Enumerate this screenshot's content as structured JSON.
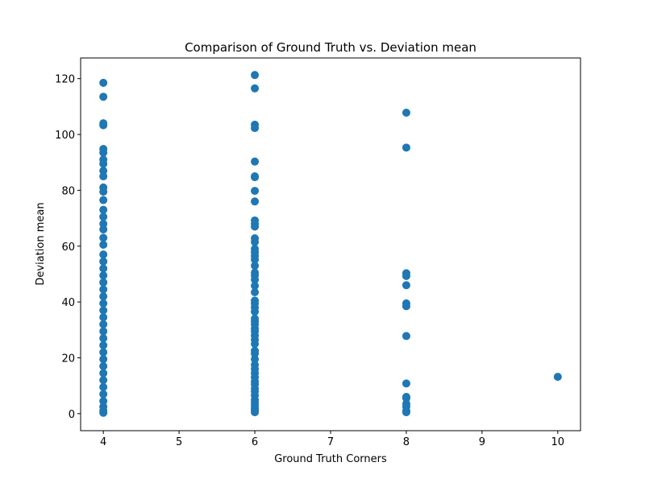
{
  "chart_data": {
    "type": "scatter",
    "title": "Comparison of Ground Truth vs. Deviation mean",
    "x_label": "Ground Truth Corners",
    "y_label": "Deviation mean",
    "color": "#1f77b4",
    "xlim": [
      3.7,
      10.3
    ],
    "ylim": [
      -6.1,
      127.4
    ],
    "xticks": [
      4,
      5,
      6,
      7,
      8,
      9,
      10
    ],
    "yticks": [
      0,
      20,
      40,
      60,
      80,
      100,
      120
    ],
    "x": [
      4,
      4,
      4,
      4,
      4,
      4,
      4,
      4,
      4,
      4,
      4,
      4,
      4,
      4,
      4,
      4,
      4,
      4,
      4,
      4,
      4,
      4,
      4,
      4,
      4,
      4,
      4,
      4,
      4,
      4,
      4,
      4,
      4,
      4,
      4,
      4,
      4,
      4,
      4,
      4,
      4,
      4,
      4,
      4,
      6,
      6,
      6,
      6,
      6,
      6,
      6,
      6,
      6,
      6,
      6,
      6,
      6,
      6,
      6,
      6,
      6,
      6,
      6,
      6,
      6,
      6,
      6,
      6,
      6,
      6,
      6,
      6,
      6,
      6,
      6,
      6,
      6,
      6,
      6,
      6,
      6,
      6,
      6,
      6,
      6,
      6,
      6,
      6,
      6,
      6,
      6,
      6,
      6,
      6,
      6,
      6,
      6,
      6,
      8,
      8,
      8,
      8,
      8,
      8,
      8,
      8,
      8,
      8,
      8,
      8,
      8,
      8,
      8,
      10
    ],
    "values": [
      118.5,
      113.5,
      104,
      103.3,
      94.8,
      93.5,
      91,
      89.5,
      87,
      85,
      81,
      79.5,
      76.5,
      73,
      70.5,
      68,
      66,
      63,
      60.5,
      57,
      54.5,
      52,
      49.5,
      47,
      44.5,
      42,
      39.5,
      37,
      34.5,
      32,
      29.5,
      27,
      24.5,
      22,
      19.5,
      17,
      14.5,
      12,
      9.5,
      7,
      4.5,
      2.5,
      1,
      0.3,
      121.3,
      116.5,
      103.5,
      102.3,
      90.3,
      85,
      84.7,
      79.8,
      76,
      69.2,
      68,
      67,
      62.8,
      61.5,
      59,
      57.8,
      56.5,
      55.2,
      53,
      50.5,
      49.5,
      48,
      45.8,
      43.5,
      40.5,
      39.5,
      38,
      36.5,
      34,
      33,
      32,
      30.5,
      29.5,
      28,
      26.5,
      25,
      22.5,
      21.5,
      19.5,
      17.5,
      16,
      14.5,
      13,
      11.5,
      10.5,
      9,
      8,
      6.5,
      5,
      4,
      3,
      2,
      1.2,
      0.5,
      107.8,
      95.3,
      50.3,
      49.3,
      46,
      39.5,
      38.5,
      27.8,
      10.8,
      6,
      5.5,
      3.5,
      2.5,
      1,
      0.5,
      13.2
    ]
  }
}
